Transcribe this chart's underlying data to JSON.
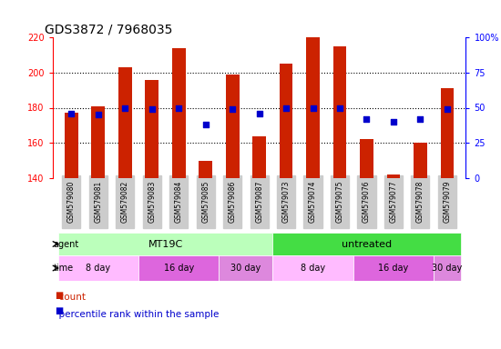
{
  "title": "GDS3872 / 7968035",
  "samples": [
    "GSM579080",
    "GSM579081",
    "GSM579082",
    "GSM579083",
    "GSM579084",
    "GSM579085",
    "GSM579086",
    "GSM579087",
    "GSM579073",
    "GSM579074",
    "GSM579075",
    "GSM579076",
    "GSM579077",
    "GSM579078",
    "GSM579079"
  ],
  "count_values": [
    177,
    181,
    203,
    196,
    214,
    150,
    199,
    164,
    205,
    220,
    215,
    162,
    142,
    160,
    191
  ],
  "percentile_values": [
    46,
    45,
    50,
    49,
    50,
    38,
    49,
    46,
    50,
    50,
    50,
    42,
    40,
    42,
    49
  ],
  "ylim_left": [
    140,
    220
  ],
  "ylim_right": [
    0,
    100
  ],
  "yticks_left": [
    140,
    160,
    180,
    200,
    220
  ],
  "yticks_right": [
    0,
    25,
    50,
    75,
    100
  ],
  "bar_color": "#cc2200",
  "dot_color": "#0000cc",
  "bar_bottom": 140,
  "agent_groups": [
    {
      "label": "MT19C",
      "start": 0,
      "end": 8,
      "color": "#bbffbb"
    },
    {
      "label": "untreated",
      "start": 8,
      "end": 15,
      "color": "#44dd44"
    }
  ],
  "time_groups": [
    {
      "label": "8 day",
      "start": 0,
      "end": 3,
      "color": "#ffbbff"
    },
    {
      "label": "16 day",
      "start": 3,
      "end": 6,
      "color": "#dd66dd"
    },
    {
      "label": "30 day",
      "start": 6,
      "end": 8,
      "color": "#dd88dd"
    },
    {
      "label": "8 day",
      "start": 8,
      "end": 11,
      "color": "#ffbbff"
    },
    {
      "label": "16 day",
      "start": 11,
      "end": 14,
      "color": "#dd66dd"
    },
    {
      "label": "30 day",
      "start": 14,
      "end": 15,
      "color": "#dd88dd"
    }
  ],
  "tick_bg_color": "#cccccc",
  "title_fontsize": 10
}
